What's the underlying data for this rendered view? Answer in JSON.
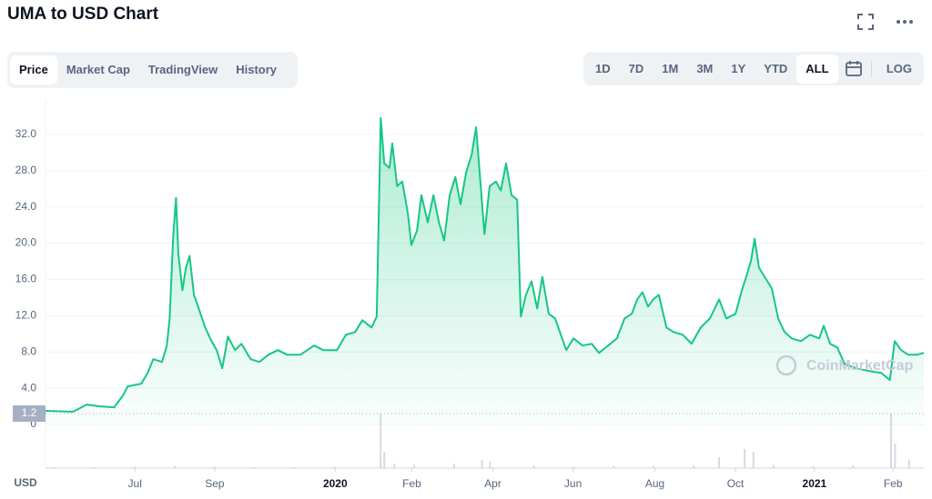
{
  "header": {
    "title": "UMA to USD Chart"
  },
  "tabs": {
    "items": [
      "Price",
      "Market Cap",
      "TradingView",
      "History"
    ],
    "selected": 0
  },
  "ranges": {
    "items": [
      "1D",
      "7D",
      "1M",
      "3M",
      "1Y",
      "YTD",
      "ALL"
    ],
    "selected": 6,
    "log": "LOG"
  },
  "chart_data": {
    "type": "line",
    "color": "#16c784",
    "watermark": "CoinMarketCap",
    "y_axis_label": "USD",
    "price_marker": {
      "value": 1.2,
      "label": "1.2"
    },
    "x": [
      -2.24,
      -1.55,
      -1.21,
      -0.87,
      -0.52,
      -0.3,
      -0.18,
      0.16,
      0.32,
      0.46,
      0.68,
      0.8,
      0.87,
      0.96,
      1.03,
      1.09,
      1.19,
      1.28,
      1.37,
      1.48,
      1.6,
      1.76,
      1.92,
      2.05,
      2.19,
      2.33,
      2.51,
      2.67,
      2.9,
      3.12,
      3.35,
      3.58,
      3.81,
      4.15,
      4.49,
      4.72,
      5.06,
      5.29,
      5.52,
      5.7,
      5.93,
      6.06,
      6.16,
      6.25,
      6.38,
      6.45,
      6.57,
      6.7,
      6.84,
      6.93,
      7.07,
      7.18,
      7.34,
      7.48,
      7.62,
      7.75,
      7.89,
      8.03,
      8.16,
      8.3,
      8.44,
      8.55,
      8.64,
      8.76,
      8.89,
      9.05,
      9.17,
      9.3,
      9.44,
      9.58,
      9.67,
      9.8,
      9.94,
      10.08,
      10.21,
      10.37,
      10.53,
      10.69,
      10.81,
      10.99,
      11.22,
      11.45,
      11.63,
      11.86,
      12.08,
      12.27,
      12.45,
      12.59,
      12.72,
      12.86,
      12.99,
      13.13,
      13.32,
      13.5,
      13.73,
      13.95,
      14.18,
      14.41,
      14.64,
      14.82,
      15.05,
      15.21,
      15.32,
      15.44,
      15.53,
      15.64,
      15.78,
      15.96,
      16.12,
      16.28,
      16.46,
      16.69,
      16.92,
      17.15,
      17.26,
      17.42,
      17.6,
      17.78,
      18.06,
      18.4,
      18.7,
      18.92,
      19.04,
      19.2,
      19.38,
      19.61,
      19.77
    ],
    "values": [
      1.5,
      1.4,
      2.2,
      2.0,
      1.9,
      3.2,
      4.2,
      4.5,
      5.7,
      7.2,
      6.9,
      8.7,
      11.7,
      20.8,
      25.0,
      18.8,
      14.8,
      17.3,
      18.6,
      14.3,
      12.8,
      10.7,
      9.2,
      8.2,
      6.2,
      9.7,
      8.2,
      8.9,
      7.2,
      6.9,
      7.7,
      8.2,
      7.7,
      7.7,
      8.7,
      8.2,
      8.2,
      9.9,
      10.2,
      11.5,
      10.7,
      11.9,
      33.8,
      28.8,
      28.3,
      31.0,
      26.3,
      26.8,
      23.3,
      19.8,
      21.4,
      25.3,
      22.3,
      25.3,
      22.3,
      20.3,
      25.3,
      27.3,
      24.3,
      27.8,
      29.8,
      32.8,
      27.8,
      21.0,
      26.3,
      26.8,
      25.8,
      28.8,
      25.3,
      24.8,
      11.9,
      14.3,
      15.8,
      12.8,
      16.3,
      12.2,
      11.7,
      9.7,
      8.2,
      9.5,
      8.7,
      8.9,
      7.9,
      8.7,
      9.5,
      11.7,
      12.2,
      13.8,
      14.6,
      13.0,
      13.8,
      14.3,
      10.7,
      10.2,
      9.9,
      8.9,
      10.7,
      11.7,
      13.8,
      11.7,
      12.2,
      14.8,
      16.3,
      18.1,
      20.5,
      17.3,
      16.3,
      15.0,
      11.7,
      10.2,
      9.5,
      9.2,
      9.9,
      9.5,
      10.9,
      8.9,
      8.5,
      6.7,
      6.2,
      5.9,
      5.7,
      4.9,
      9.2,
      8.2,
      7.7,
      7.7,
      7.9
    ],
    "volume": {
      "x": [
        -2.0,
        -1.0,
        0.0,
        1.0,
        2.0,
        3.0,
        4.0,
        5.0,
        6.16,
        6.25,
        6.5,
        7.0,
        8.0,
        8.7,
        8.9,
        10.0,
        11.0,
        12.0,
        13.0,
        14.0,
        14.64,
        15.28,
        15.5,
        16.0,
        17.0,
        18.0,
        18.95,
        19.05,
        19.4
      ],
      "values": [
        2,
        2,
        3,
        4,
        3,
        2,
        2,
        3,
        100,
        30,
        8,
        6,
        8,
        15,
        12,
        5,
        3,
        4,
        4,
        5,
        20,
        35,
        30,
        6,
        4,
        5,
        100,
        45,
        15
      ],
      "ylim": [
        0,
        100
      ]
    },
    "xlim": [
      -2.24,
      19.77
    ],
    "ylim": [
      0,
      35.8
    ],
    "xticks": [
      {
        "value": 0,
        "label": "Jul"
      },
      {
        "value": 2,
        "label": "Sep"
      },
      {
        "value": 5.02,
        "label": "2020",
        "bold": true
      },
      {
        "value": 6.94,
        "label": "Feb"
      },
      {
        "value": 8.97,
        "label": "Apr"
      },
      {
        "value": 10.98,
        "label": "Jun"
      },
      {
        "value": 13.03,
        "label": "Aug"
      },
      {
        "value": 15.05,
        "label": "Oct"
      },
      {
        "value": 17.03,
        "label": "2021",
        "bold": true
      },
      {
        "value": 19.0,
        "label": "Feb"
      }
    ],
    "yticks": [
      0,
      {
        "value": 4,
        "label": "4.0"
      },
      {
        "value": 8,
        "label": "8.0"
      },
      {
        "value": 12,
        "label": "12.0"
      },
      {
        "value": 16,
        "label": "16.0"
      },
      {
        "value": 20,
        "label": "20.0"
      },
      {
        "value": 24,
        "label": "24.0"
      },
      {
        "value": 28,
        "label": "28.0"
      },
      {
        "value": 32,
        "label": "32.0"
      }
    ],
    "grid": true
  }
}
